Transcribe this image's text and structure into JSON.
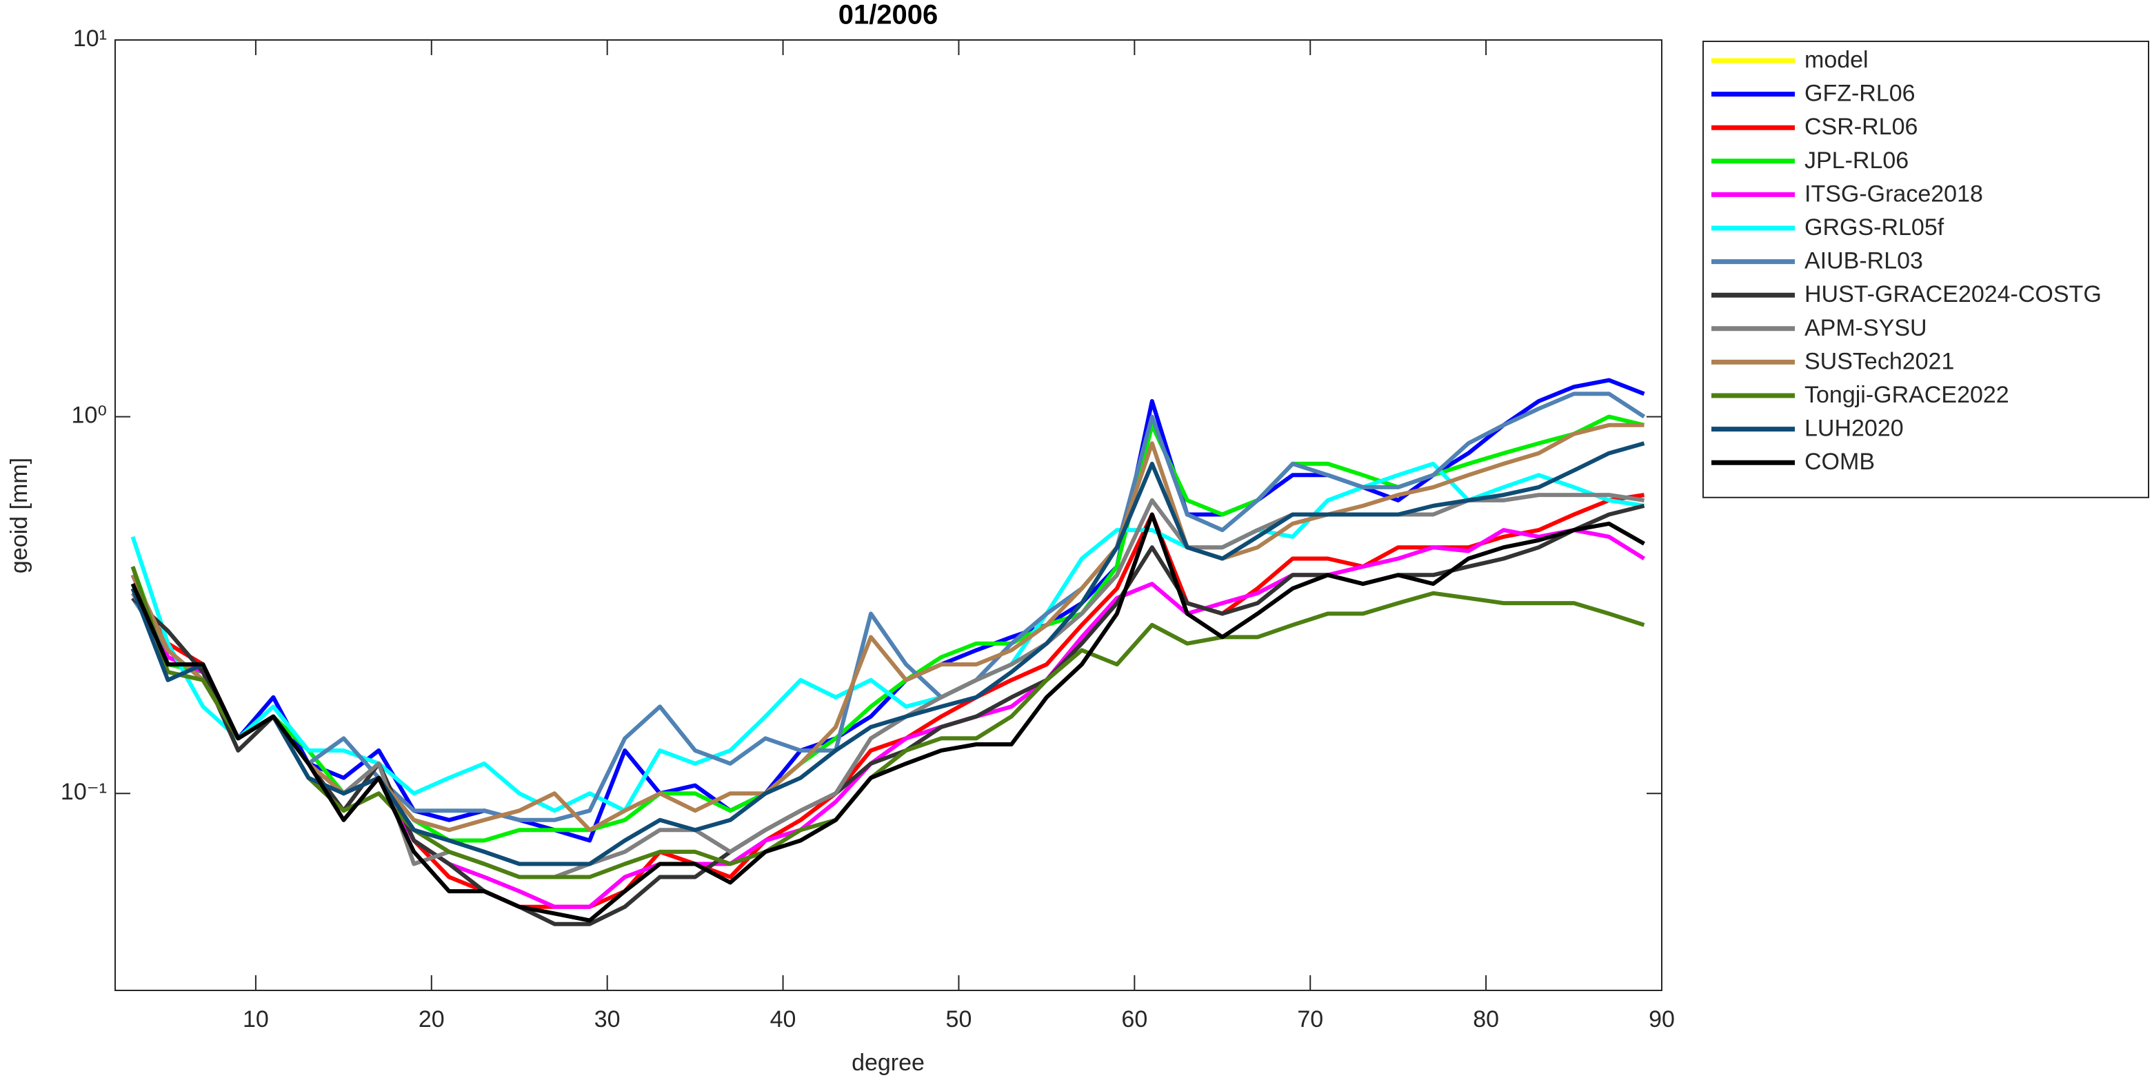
{
  "chart_data": {
    "type": "line",
    "title": "01/2006",
    "xlabel": "degree",
    "ylabel": "geoid [mm]",
    "yscale": "log",
    "grid": false,
    "legend": "right",
    "xlim": [
      2,
      90
    ],
    "xticks": [
      10,
      20,
      30,
      40,
      50,
      60,
      70,
      80,
      90
    ],
    "ylim": [
      0.03,
      10
    ],
    "yticks": [
      {
        "value": 0.1,
        "label": "10⁻¹"
      },
      {
        "value": 1,
        "label": "10⁰"
      },
      {
        "value": 10,
        "label": "10¹"
      }
    ],
    "x": [
      3,
      5,
      7,
      9,
      11,
      13,
      15,
      17,
      19,
      21,
      23,
      25,
      27,
      29,
      31,
      33,
      35,
      37,
      39,
      41,
      43,
      45,
      47,
      49,
      51,
      53,
      55,
      57,
      59,
      61,
      63,
      65,
      67,
      69,
      71,
      73,
      75,
      77,
      79,
      81,
      83,
      85,
      87,
      89
    ],
    "series": [
      {
        "name": "model",
        "color": "#ffff00",
        "values": [
          null,
          null,
          null,
          null,
          null,
          null,
          null,
          null,
          null,
          null,
          null,
          null,
          null,
          null,
          null,
          null,
          null,
          null,
          null,
          null,
          null,
          null,
          null,
          null,
          null,
          null,
          null,
          null,
          null,
          null,
          null,
          null,
          null,
          null,
          null,
          null,
          null,
          null,
          null,
          null,
          null,
          null,
          null,
          null
        ]
      },
      {
        "name": "GFZ-RL06",
        "color": "#0000ff",
        "values": [
          0.38,
          0.24,
          0.2,
          0.14,
          0.18,
          0.12,
          0.11,
          0.13,
          0.09,
          0.085,
          0.09,
          0.085,
          0.08,
          0.075,
          0.13,
          0.1,
          0.105,
          0.09,
          0.1,
          0.13,
          0.14,
          0.16,
          0.2,
          0.22,
          0.24,
          0.26,
          0.28,
          0.32,
          0.4,
          1.1,
          0.55,
          0.55,
          0.6,
          0.7,
          0.7,
          0.65,
          0.6,
          0.7,
          0.8,
          0.95,
          1.1,
          1.2,
          1.25,
          1.15
        ]
      },
      {
        "name": "CSR-RL06",
        "color": "#ff0000",
        "values": [
          0.35,
          0.25,
          0.22,
          0.14,
          0.16,
          0.12,
          0.1,
          0.11,
          0.075,
          0.06,
          0.055,
          0.05,
          0.05,
          0.05,
          0.055,
          0.07,
          0.065,
          0.06,
          0.075,
          0.085,
          0.1,
          0.13,
          0.14,
          0.16,
          0.18,
          0.2,
          0.22,
          0.28,
          0.35,
          0.55,
          0.32,
          0.3,
          0.35,
          0.42,
          0.42,
          0.4,
          0.45,
          0.45,
          0.45,
          0.48,
          0.5,
          0.55,
          0.6,
          0.62
        ]
      },
      {
        "name": "JPL-RL06",
        "color": "#00ee00",
        "values": [
          0.4,
          0.22,
          0.21,
          0.14,
          0.16,
          0.13,
          0.1,
          0.11,
          0.085,
          0.075,
          0.075,
          0.08,
          0.08,
          0.08,
          0.085,
          0.1,
          0.1,
          0.09,
          0.1,
          0.12,
          0.14,
          0.17,
          0.2,
          0.23,
          0.25,
          0.25,
          0.28,
          0.3,
          0.4,
          0.95,
          0.6,
          0.55,
          0.6,
          0.75,
          0.75,
          0.7,
          0.65,
          0.7,
          0.75,
          0.8,
          0.85,
          0.9,
          1.0,
          0.95
        ]
      },
      {
        "name": "ITSG-Grace2018",
        "color": "#ff00ff",
        "values": [
          0.38,
          0.23,
          0.21,
          0.14,
          0.16,
          0.12,
          0.1,
          0.11,
          0.075,
          0.065,
          0.06,
          0.055,
          0.05,
          0.05,
          0.06,
          0.065,
          0.065,
          0.065,
          0.075,
          0.08,
          0.095,
          0.12,
          0.14,
          0.15,
          0.16,
          0.17,
          0.2,
          0.26,
          0.33,
          0.36,
          0.3,
          0.32,
          0.34,
          0.38,
          0.38,
          0.4,
          0.42,
          0.45,
          0.44,
          0.5,
          0.48,
          0.5,
          0.48,
          0.42
        ]
      },
      {
        "name": "GRGS-RL05f",
        "color": "#00ffff",
        "values": [
          0.48,
          0.25,
          0.17,
          0.14,
          0.17,
          0.13,
          0.13,
          0.12,
          0.1,
          0.11,
          0.12,
          0.1,
          0.09,
          0.1,
          0.09,
          0.13,
          0.12,
          0.13,
          0.16,
          0.2,
          0.18,
          0.2,
          0.17,
          0.18,
          0.2,
          0.22,
          0.3,
          0.42,
          0.5,
          0.5,
          0.45,
          0.45,
          0.5,
          0.48,
          0.6,
          0.65,
          0.7,
          0.75,
          0.6,
          0.65,
          0.7,
          0.65,
          0.6,
          0.58
        ]
      },
      {
        "name": "AIUB-RL03",
        "color": "#5082b4",
        "values": [
          0.33,
          0.24,
          0.2,
          0.14,
          0.16,
          0.12,
          0.14,
          0.11,
          0.09,
          0.09,
          0.09,
          0.085,
          0.085,
          0.09,
          0.14,
          0.17,
          0.13,
          0.12,
          0.14,
          0.13,
          0.13,
          0.3,
          0.22,
          0.18,
          0.2,
          0.25,
          0.3,
          0.35,
          0.45,
          1.0,
          0.55,
          0.5,
          0.6,
          0.75,
          0.7,
          0.65,
          0.65,
          0.7,
          0.85,
          0.95,
          1.05,
          1.15,
          1.15,
          1.0
        ]
      },
      {
        "name": "HUST-GRACE2024-COSTG",
        "color": "#333333",
        "values": [
          0.33,
          0.27,
          0.21,
          0.13,
          0.16,
          0.12,
          0.09,
          0.12,
          0.075,
          0.065,
          0.055,
          0.05,
          0.045,
          0.045,
          0.05,
          0.06,
          0.06,
          0.07,
          0.08,
          0.09,
          0.1,
          0.12,
          0.13,
          0.15,
          0.16,
          0.18,
          0.2,
          0.25,
          0.32,
          0.45,
          0.32,
          0.3,
          0.32,
          0.38,
          0.38,
          0.36,
          0.38,
          0.38,
          0.4,
          0.42,
          0.45,
          0.5,
          0.55,
          0.58
        ]
      },
      {
        "name": "APM-SYSU",
        "color": "#808080",
        "values": [
          0.34,
          0.24,
          0.2,
          0.14,
          0.16,
          0.12,
          0.1,
          0.12,
          0.065,
          0.07,
          0.065,
          0.06,
          0.06,
          0.065,
          0.07,
          0.08,
          0.08,
          0.07,
          0.08,
          0.09,
          0.1,
          0.14,
          0.16,
          0.18,
          0.2,
          0.22,
          0.25,
          0.3,
          0.38,
          0.6,
          0.45,
          0.45,
          0.5,
          0.55,
          0.55,
          0.55,
          0.55,
          0.55,
          0.6,
          0.6,
          0.62,
          0.62,
          0.62,
          0.6
        ]
      },
      {
        "name": "SUSTech2021",
        "color": "#b08050",
        "values": [
          0.38,
          0.24,
          0.2,
          0.14,
          0.16,
          0.12,
          0.1,
          0.11,
          0.085,
          0.08,
          0.085,
          0.09,
          0.1,
          0.08,
          0.09,
          0.1,
          0.09,
          0.1,
          0.1,
          0.12,
          0.15,
          0.26,
          0.2,
          0.22,
          0.22,
          0.24,
          0.28,
          0.35,
          0.45,
          0.85,
          0.45,
          0.42,
          0.45,
          0.52,
          0.55,
          0.58,
          0.62,
          0.65,
          0.7,
          0.75,
          0.8,
          0.9,
          0.95,
          0.95
        ]
      },
      {
        "name": "Tongji-GRACE2022",
        "color": "#4d7f12",
        "values": [
          0.4,
          0.21,
          0.2,
          0.14,
          0.16,
          0.11,
          0.09,
          0.1,
          0.08,
          0.07,
          0.065,
          0.06,
          0.06,
          0.06,
          0.065,
          0.07,
          0.07,
          0.065,
          0.07,
          0.08,
          0.085,
          0.11,
          0.13,
          0.14,
          0.14,
          0.16,
          0.2,
          0.24,
          0.22,
          0.28,
          0.25,
          0.26,
          0.26,
          0.28,
          0.3,
          0.3,
          0.32,
          0.34,
          0.33,
          0.32,
          0.32,
          0.32,
          0.3,
          0.28
        ]
      },
      {
        "name": "LUH2020",
        "color": "#0f4c75",
        "values": [
          0.35,
          0.2,
          0.22,
          0.14,
          0.16,
          0.11,
          0.1,
          0.11,
          0.08,
          0.075,
          0.07,
          0.065,
          0.065,
          0.065,
          0.075,
          0.085,
          0.08,
          0.085,
          0.1,
          0.11,
          0.13,
          0.15,
          0.16,
          0.17,
          0.18,
          0.21,
          0.25,
          0.32,
          0.45,
          0.75,
          0.45,
          0.42,
          0.48,
          0.55,
          0.55,
          0.55,
          0.55,
          0.58,
          0.6,
          0.62,
          0.65,
          0.72,
          0.8,
          0.85
        ]
      },
      {
        "name": "COMB",
        "color": "#000000",
        "values": [
          0.36,
          0.22,
          0.22,
          0.14,
          0.16,
          0.12,
          0.085,
          0.11,
          0.07,
          0.055,
          0.055,
          0.05,
          0.048,
          0.046,
          0.055,
          0.065,
          0.065,
          0.058,
          0.07,
          0.075,
          0.085,
          0.11,
          0.12,
          0.13,
          0.135,
          0.135,
          0.18,
          0.22,
          0.3,
          0.55,
          0.3,
          0.26,
          0.3,
          0.35,
          0.38,
          0.36,
          0.38,
          0.36,
          0.42,
          0.45,
          0.47,
          0.5,
          0.52,
          0.46
        ]
      }
    ]
  }
}
